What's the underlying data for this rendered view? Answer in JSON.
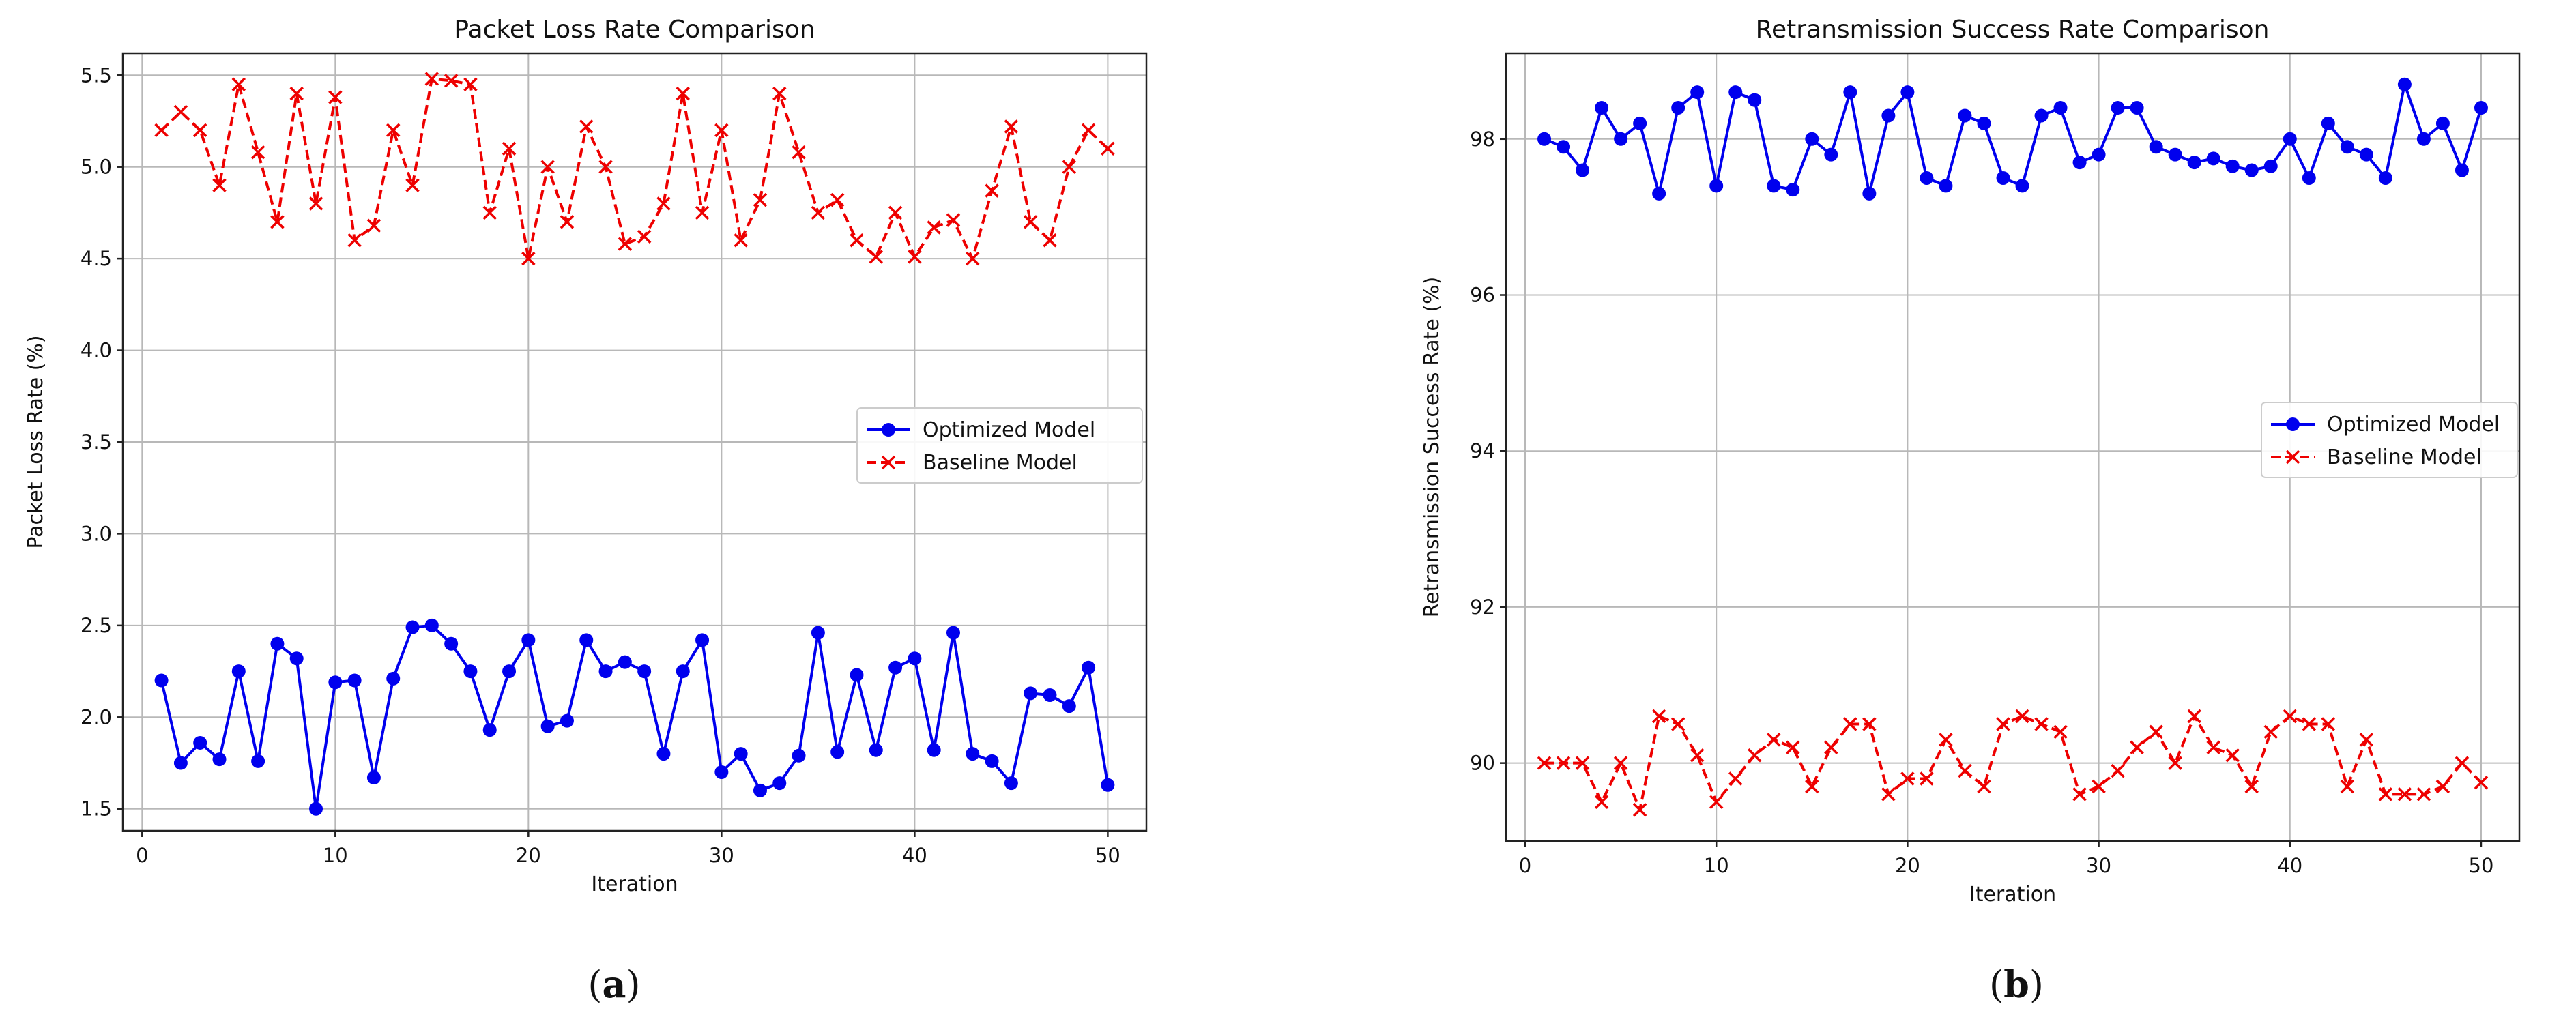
{
  "chart_data": [
    {
      "type": "line",
      "panel_label": "a",
      "title": "Packet Loss Rate Comparison",
      "xlabel": "Iteration",
      "ylabel": "Packet Loss Rate (%)",
      "xlim": [
        -1,
        52
      ],
      "ylim": [
        1.38,
        5.62
      ],
      "xticks": [
        0,
        10,
        20,
        30,
        40,
        50
      ],
      "yticks": [
        1.5,
        2.0,
        2.5,
        3.0,
        3.5,
        4.0,
        4.5,
        5.0,
        5.5
      ],
      "ytick_labels": [
        "1.5",
        "2.0",
        "2.5",
        "3.0",
        "3.5",
        "4.0",
        "4.5",
        "5.0",
        "5.5"
      ],
      "grid": true,
      "legend_position": "center-right",
      "x": [
        1,
        2,
        3,
        4,
        5,
        6,
        7,
        8,
        9,
        10,
        11,
        12,
        13,
        14,
        15,
        16,
        17,
        18,
        19,
        20,
        21,
        22,
        23,
        24,
        25,
        26,
        27,
        28,
        29,
        30,
        31,
        32,
        33,
        34,
        35,
        36,
        37,
        38,
        39,
        40,
        41,
        42,
        43,
        44,
        45,
        46,
        47,
        48,
        49,
        50
      ],
      "series": [
        {
          "name": "Optimized Model",
          "color": "#0000ee",
          "style": "solid",
          "marker": "circle",
          "values": [
            2.2,
            1.75,
            1.86,
            1.77,
            2.25,
            1.76,
            2.4,
            2.32,
            1.5,
            2.19,
            2.2,
            1.67,
            2.21,
            2.49,
            2.5,
            2.4,
            2.25,
            1.93,
            2.25,
            2.42,
            1.95,
            1.98,
            2.42,
            2.25,
            2.3,
            2.25,
            1.8,
            2.25,
            2.42,
            1.7,
            1.8,
            1.6,
            1.64,
            1.79,
            2.46,
            1.81,
            2.23,
            1.82,
            2.27,
            2.32,
            1.82,
            2.46,
            1.8,
            1.76,
            1.64,
            2.13,
            2.12,
            2.06,
            2.27,
            1.63
          ]
        },
        {
          "name": "Baseline Model",
          "color": "#ee0000",
          "style": "dashed",
          "marker": "x",
          "values": [
            5.2,
            5.3,
            5.2,
            4.9,
            5.45,
            5.08,
            4.7,
            5.4,
            4.8,
            5.38,
            4.6,
            4.68,
            5.2,
            4.9,
            5.48,
            5.47,
            5.45,
            4.75,
            5.1,
            4.5,
            5.0,
            4.7,
            5.22,
            5.0,
            4.58,
            4.62,
            4.8,
            5.4,
            4.75,
            5.2,
            4.6,
            4.82,
            5.4,
            5.08,
            4.75,
            4.82,
            4.6,
            4.51,
            4.75,
            4.51,
            4.67,
            4.71,
            4.5,
            4.87,
            5.22,
            4.7,
            4.6,
            5.0,
            5.2,
            5.1
          ]
        }
      ]
    },
    {
      "type": "line",
      "panel_label": "b",
      "title": "Retransmission Success Rate Comparison",
      "xlabel": "Iteration",
      "ylabel": "Retransmission Success Rate (%)",
      "xlim": [
        -1,
        52
      ],
      "ylim": [
        89.0,
        99.1
      ],
      "xticks": [
        0,
        10,
        20,
        30,
        40,
        50
      ],
      "yticks": [
        90,
        92,
        94,
        96,
        98
      ],
      "ytick_labels": [
        "90",
        "92",
        "94",
        "96",
        "98"
      ],
      "grid": true,
      "legend_position": "center-right",
      "x": [
        1,
        2,
        3,
        4,
        5,
        6,
        7,
        8,
        9,
        10,
        11,
        12,
        13,
        14,
        15,
        16,
        17,
        18,
        19,
        20,
        21,
        22,
        23,
        24,
        25,
        26,
        27,
        28,
        29,
        30,
        31,
        32,
        33,
        34,
        35,
        36,
        37,
        38,
        39,
        40,
        41,
        42,
        43,
        44,
        45,
        46,
        47,
        48,
        49,
        50
      ],
      "series": [
        {
          "name": "Optimized Model",
          "color": "#0000ee",
          "style": "solid",
          "marker": "circle",
          "values": [
            98.0,
            97.9,
            97.6,
            98.4,
            98.0,
            98.2,
            97.3,
            98.4,
            98.6,
            97.4,
            98.6,
            98.5,
            97.4,
            97.35,
            98.0,
            97.8,
            98.6,
            97.3,
            98.3,
            98.6,
            97.5,
            97.4,
            98.3,
            98.2,
            97.5,
            97.4,
            98.3,
            98.4,
            97.7,
            97.8,
            98.4,
            98.4,
            97.9,
            97.8,
            97.7,
            97.75,
            97.65,
            97.6,
            97.65,
            98.0,
            97.5,
            98.2,
            97.9,
            97.8,
            97.5,
            98.7,
            98.0,
            98.2,
            97.6,
            98.4
          ]
        },
        {
          "name": "Baseline Model",
          "color": "#ee0000",
          "style": "dashed",
          "marker": "x",
          "values": [
            90.0,
            90.0,
            90.0,
            89.5,
            90.0,
            89.4,
            90.6,
            90.5,
            90.1,
            89.5,
            89.8,
            90.1,
            90.3,
            90.2,
            89.7,
            90.2,
            90.5,
            90.5,
            89.6,
            89.8,
            89.8,
            90.3,
            89.9,
            89.7,
            90.5,
            90.6,
            90.5,
            90.4,
            89.6,
            89.7,
            89.9,
            90.2,
            90.4,
            90.0,
            90.6,
            90.2,
            90.1,
            89.7,
            90.4,
            90.6,
            90.5,
            90.5,
            89.7,
            90.3,
            89.6,
            89.6,
            89.6,
            89.7,
            90.0,
            89.75
          ]
        }
      ]
    }
  ]
}
